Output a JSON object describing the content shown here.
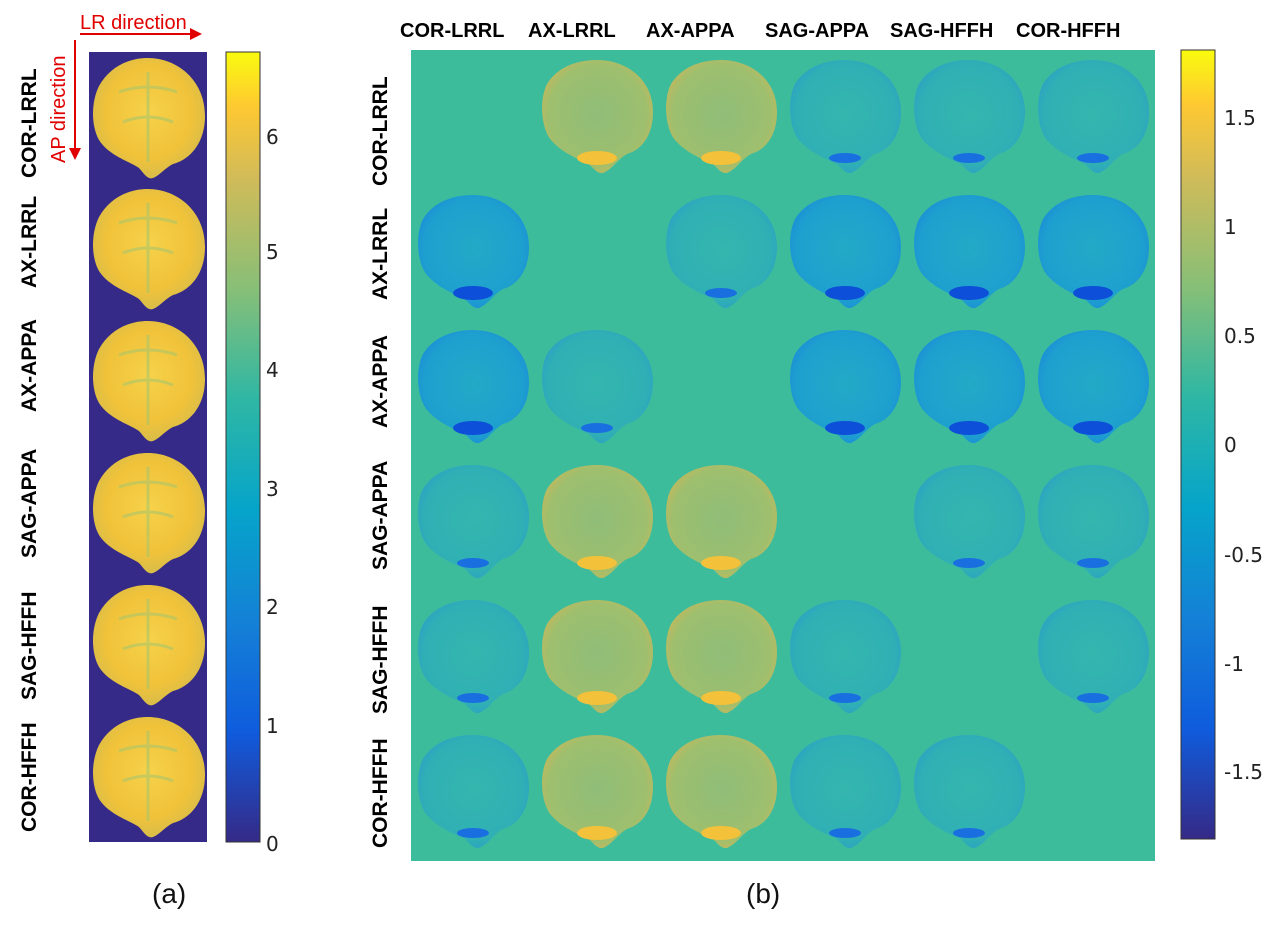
{
  "panel_a": {
    "lr_direction": "LR direction",
    "ap_direction": "AP direction",
    "row_labels": [
      "COR-LRRL",
      "AX-LRRL",
      "AX-APPA",
      "SAG-APPA",
      "SAG-HFFH",
      "COR-HFFH"
    ],
    "colorbar_ticks": [
      "6",
      "5",
      "4",
      "3",
      "2",
      "1",
      "0"
    ],
    "caption": "(a)"
  },
  "panel_b": {
    "column_labels": [
      "COR-LRRL",
      "AX-LRRL",
      "AX-APPA",
      "SAG-APPA",
      "SAG-HFFH",
      "COR-HFFH"
    ],
    "row_labels": [
      "COR-LRRL",
      "AX-LRRL",
      "AX-APPA",
      "SAG-APPA",
      "SAG-HFFH",
      "COR-HFFH"
    ],
    "colorbar_ticks": [
      "1.5",
      "1",
      "0.5",
      "0",
      "-0.5",
      "-1",
      "-1.5"
    ],
    "caption": "(b)"
  },
  "colors": {
    "parula_dark": "#352a87",
    "parula_teal": "#3dbc9c",
    "brain_yellow": "#f2c43a",
    "annotation_red": "#e00000"
  }
}
